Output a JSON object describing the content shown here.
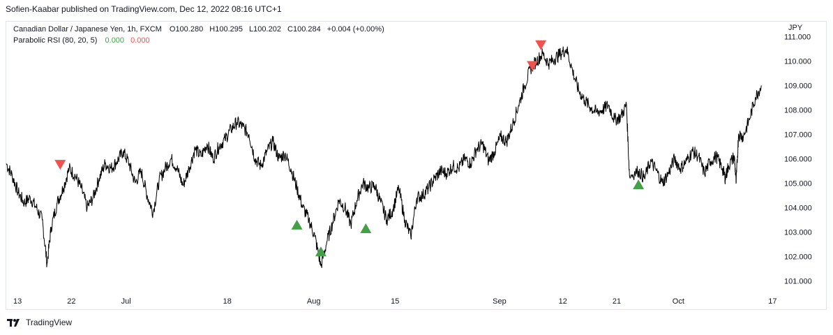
{
  "published_line": "Sofien-Kaabar published on TradingView.com, Dec 12, 2022 08:16 UTC+1",
  "brand": {
    "name": "TradingView",
    "logo_text": "17"
  },
  "legend": {
    "symbol": "Canadian Dollar / Japanese Yen, 1h, FXCM",
    "o_label": "O",
    "o_value": "100.280",
    "h_label": "H",
    "h_value": "100.295",
    "l_label": "L",
    "l_value": "100.202",
    "c_label": "C",
    "c_value": "100.284",
    "change": "+0.004 (+0.00%)",
    "indicator": "Parabolic RSI (80, 20, 5)",
    "ind_value_1": "0.000",
    "ind_value_2": "0.000"
  },
  "currency_label": "JPY",
  "colors": {
    "line": "#000000",
    "up_marker": "#43a047",
    "down_marker": "#ef5350",
    "grid": "#f0f3fa"
  },
  "chart_data": {
    "type": "line",
    "title": "Canadian Dollar / Japanese Yen, 1h, FXCM",
    "xlabel": "",
    "ylabel": "JPY",
    "ylim": [
      100.55,
      111.5
    ],
    "xlim": [
      0,
      123
    ],
    "x_unit": "days since Jun 13, 2022",
    "y_ticks": [
      101.0,
      102.0,
      103.0,
      104.0,
      105.0,
      106.0,
      107.0,
      108.0,
      109.0,
      110.0,
      111.0
    ],
    "x_ticks": [
      {
        "label": "13",
        "x": 0
      },
      {
        "label": "22",
        "x": 9
      },
      {
        "label": "Jul",
        "x": 18
      },
      {
        "label": "18",
        "x": 35
      },
      {
        "label": "Aug",
        "x": 49
      },
      {
        "label": "15",
        "x": 63
      },
      {
        "label": "Sep",
        "x": 80
      },
      {
        "label": "12",
        "x": 91
      },
      {
        "label": "21",
        "x": 100
      },
      {
        "label": "Oct",
        "x": 110
      },
      {
        "label": "17",
        "x": 126
      }
    ],
    "series": [
      {
        "points": [
          [
            0,
            105.8
          ],
          [
            1,
            105.3
          ],
          [
            2,
            104.6
          ],
          [
            3,
            104.2
          ],
          [
            4,
            104.4
          ],
          [
            5,
            104.0
          ],
          [
            6,
            103.5
          ],
          [
            6.8,
            101.7
          ],
          [
            7.5,
            103.2
          ],
          [
            8.5,
            104.2
          ],
          [
            9.5,
            104.8
          ],
          [
            10.5,
            105.6
          ],
          [
            11.5,
            105.3
          ],
          [
            12.5,
            104.8
          ],
          [
            13.5,
            104.0
          ],
          [
            14.5,
            104.4
          ],
          [
            15.5,
            105.2
          ],
          [
            16.5,
            105.8
          ],
          [
            17.5,
            105.6
          ],
          [
            18.5,
            105.9
          ],
          [
            19.5,
            106.3
          ],
          [
            20.5,
            105.8
          ],
          [
            21.5,
            105.0
          ],
          [
            22.5,
            105.5
          ],
          [
            23.5,
            104.5
          ],
          [
            24.5,
            103.8
          ],
          [
            25.5,
            105.1
          ],
          [
            26.5,
            105.6
          ],
          [
            27.5,
            106.0
          ],
          [
            28.5,
            105.6
          ],
          [
            29.5,
            104.9
          ],
          [
            30.5,
            105.6
          ],
          [
            31.5,
            106.4
          ],
          [
            32.5,
            106.1
          ],
          [
            33.5,
            106.6
          ],
          [
            34.5,
            106.0
          ],
          [
            35.5,
            106.5
          ],
          [
            36.5,
            106.8
          ],
          [
            37.5,
            107.2
          ],
          [
            38.5,
            107.5
          ],
          [
            39.5,
            107.3
          ],
          [
            40.5,
            107.0
          ],
          [
            41.5,
            106.0
          ],
          [
            42.5,
            105.7
          ],
          [
            43.5,
            106.3
          ],
          [
            44.5,
            106.7
          ],
          [
            45.5,
            106.0
          ],
          [
            46.5,
            106.2
          ],
          [
            47.5,
            105.6
          ],
          [
            48.5,
            104.8
          ],
          [
            49.5,
            104.0
          ],
          [
            50.5,
            103.5
          ],
          [
            51.5,
            102.8
          ],
          [
            52.5,
            101.6
          ],
          [
            53.5,
            102.6
          ],
          [
            54.5,
            103.4
          ],
          [
            55.5,
            104.3
          ],
          [
            56.5,
            104.0
          ],
          [
            57.5,
            103.3
          ],
          [
            58.5,
            104.3
          ],
          [
            59.5,
            105.0
          ],
          [
            60.5,
            104.8
          ],
          [
            61.5,
            104.9
          ],
          [
            62.5,
            104.2
          ],
          [
            63.5,
            103.5
          ],
          [
            64.5,
            103.9
          ],
          [
            65.5,
            104.8
          ],
          [
            66.5,
            103.5
          ],
          [
            67.5,
            102.8
          ],
          [
            68.5,
            104.4
          ],
          [
            69.5,
            104.5
          ],
          [
            70.5,
            104.8
          ],
          [
            71.5,
            105.2
          ],
          [
            72.5,
            105.5
          ],
          [
            73.5,
            105.4
          ],
          [
            74.5,
            105.7
          ],
          [
            75.5,
            105.6
          ],
          [
            76.5,
            106.0
          ],
          [
            77.5,
            105.8
          ],
          [
            78.5,
            106.4
          ],
          [
            79.5,
            106.6
          ],
          [
            80.5,
            105.9
          ],
          [
            81.5,
            106.3
          ],
          [
            82.5,
            106.9
          ],
          [
            83.5,
            106.7
          ],
          [
            84.5,
            107.4
          ],
          [
            85.5,
            108.2
          ],
          [
            86.5,
            109.0
          ],
          [
            87.5,
            109.7
          ],
          [
            88.5,
            110.0
          ],
          [
            89.5,
            110.3
          ],
          [
            90.5,
            109.9
          ],
          [
            91.5,
            110.1
          ],
          [
            92.5,
            110.3
          ],
          [
            93.5,
            110.5
          ],
          [
            94.5,
            109.6
          ],
          [
            95.5,
            108.8
          ],
          [
            96.5,
            108.4
          ],
          [
            97.5,
            108.1
          ],
          [
            98.5,
            107.9
          ],
          [
            99.5,
            108.0
          ],
          [
            100.5,
            108.2
          ],
          [
            101.5,
            107.6
          ],
          [
            102.5,
            107.7
          ],
          [
            103.5,
            108.2
          ],
          [
            104.0,
            105.3
          ],
          [
            105.5,
            105.5
          ],
          [
            106.5,
            105.2
          ],
          [
            107.5,
            105.9
          ],
          [
            108.5,
            105.5
          ],
          [
            109.5,
            105.0
          ],
          [
            110.5,
            105.4
          ],
          [
            111.5,
            106.0
          ],
          [
            112.5,
            105.6
          ],
          [
            113.5,
            105.9
          ],
          [
            114.5,
            106.3
          ],
          [
            115.5,
            106.1
          ],
          [
            116.5,
            105.4
          ],
          [
            117.5,
            105.9
          ],
          [
            118.5,
            106.1
          ],
          [
            119.5,
            105.6
          ],
          [
            120.0,
            105.2
          ],
          [
            120.5,
            105.7
          ],
          [
            121.5,
            106.1
          ],
          [
            121.8,
            105.0
          ],
          [
            122.2,
            107.0
          ],
          [
            123.0,
            106.9
          ],
          [
            124.0,
            107.6
          ],
          [
            125.0,
            108.5
          ],
          [
            126.0,
            109.0
          ]
        ]
      }
    ],
    "signals": [
      {
        "type": "sell",
        "x": 9,
        "y": 105.75
      },
      {
        "type": "buy",
        "x": 48.5,
        "y": 103.3
      },
      {
        "type": "buy",
        "x": 52.5,
        "y": 102.2
      },
      {
        "type": "buy",
        "x": 60,
        "y": 103.15
      },
      {
        "type": "sell",
        "x": 87.8,
        "y": 109.8
      },
      {
        "type": "sell",
        "x": 89.2,
        "y": 110.65
      },
      {
        "type": "buy",
        "x": 105.5,
        "y": 104.95
      }
    ]
  }
}
